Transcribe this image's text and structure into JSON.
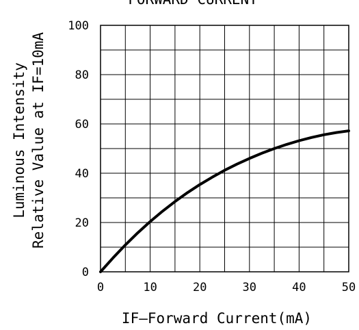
{
  "chart_data": {
    "type": "line",
    "title": "FORWARD CURRENT",
    "xlabel": "IF—Forward Current(mA)",
    "ylabel_lines": [
      "Luminous Intensity",
      "Relative Value at IF=10mA"
    ],
    "xlim": [
      0,
      50
    ],
    "ylim": [
      0,
      100
    ],
    "x_ticks": [
      0,
      10,
      20,
      30,
      40,
      50
    ],
    "y_ticks": [
      0,
      20,
      40,
      60,
      80,
      100
    ],
    "x_minor_grid_step": 5,
    "y_minor_grid_step": 10,
    "grid": true,
    "series": [
      {
        "x": [
          0,
          2.5,
          5,
          7.5,
          10,
          12.5,
          15,
          17.5,
          20,
          22.5,
          25,
          27.5,
          30,
          32.5,
          35,
          37.5,
          40,
          42.5,
          45,
          47.5,
          50
        ],
        "y": [
          0,
          5.6,
          10.9,
          15.8,
          20.4,
          24.6,
          28.5,
          32.1,
          35.4,
          38.4,
          41.2,
          43.7,
          46.0,
          48.1,
          50.0,
          51.7,
          53.2,
          54.5,
          55.6,
          56.5,
          57.2
        ]
      }
    ]
  }
}
